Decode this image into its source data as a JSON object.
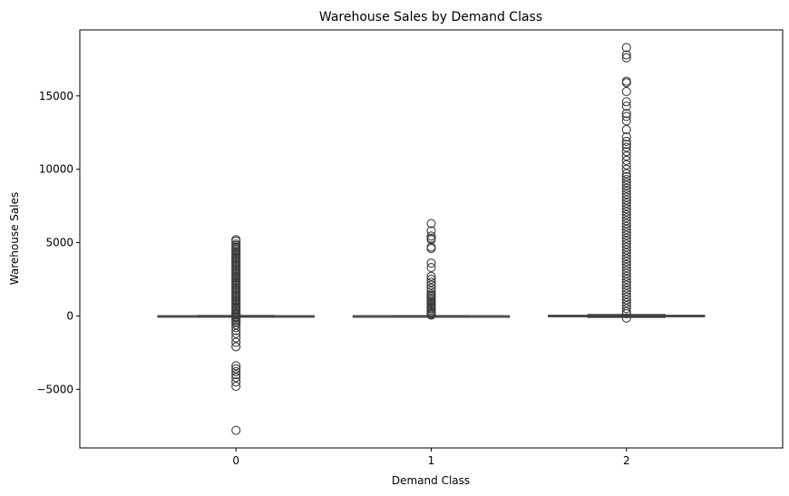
{
  "chart_data": {
    "type": "box",
    "title": "Warehouse Sales by Demand Class",
    "xlabel": "Demand Class",
    "ylabel": "Warehouse Sales",
    "categories": [
      "0",
      "1",
      "2"
    ],
    "ylim": [
      -9000,
      19500
    ],
    "yticks": [
      -5000,
      0,
      5000,
      10000,
      15000
    ],
    "ytick_labels": [
      "−5000",
      "0",
      "5000",
      "10000",
      "15000"
    ],
    "grid": false,
    "box_color": "#3d3d3d",
    "boxes": [
      {
        "category": "0",
        "q1": 0,
        "median": 2,
        "q3": 8,
        "whisker_low": -15,
        "whisker_high": 25,
        "outliers": [
          5200,
          5100,
          4900,
          4800,
          4700,
          4600,
          4500,
          4400,
          4300,
          4200,
          4100,
          4000,
          3900,
          3800,
          3700,
          3600,
          3500,
          3400,
          3300,
          3200,
          3100,
          3000,
          2900,
          2800,
          2700,
          2600,
          2500,
          2400,
          2300,
          2200,
          2100,
          2000,
          1900,
          1800,
          1700,
          1600,
          1500,
          1400,
          1300,
          1200,
          1100,
          1000,
          900,
          800,
          700,
          600,
          500,
          400,
          300,
          200,
          120,
          80,
          50,
          -40,
          -80,
          -150,
          -250,
          -350,
          -450,
          -600,
          -800,
          -1000,
          -1200,
          -1500,
          -1800,
          -2100,
          -3400,
          -3600,
          -3800,
          -4000,
          -4200,
          -4500,
          -4800,
          -7800
        ]
      },
      {
        "category": "1",
        "q1": 0,
        "median": 1,
        "q3": 4,
        "whisker_low": -5,
        "whisker_high": 15,
        "outliers": [
          6300,
          5800,
          5450,
          5300,
          5200,
          4700,
          4600,
          3600,
          3300,
          2700,
          2500,
          2300,
          2100,
          1900,
          1700,
          1500,
          1400,
          1300,
          1200,
          1100,
          1000,
          900,
          800,
          700,
          600,
          500,
          400,
          300,
          200,
          150,
          100,
          60
        ]
      },
      {
        "category": "2",
        "q1": -30,
        "median": 0,
        "q3": 40,
        "whisker_low": -100,
        "whisker_high": 100,
        "outliers": [
          18300,
          17800,
          17600,
          16000,
          15900,
          15300,
          14600,
          14300,
          13800,
          13600,
          13300,
          12700,
          12200,
          11900,
          11700,
          11500,
          11200,
          10900,
          10600,
          10300,
          10000,
          9700,
          9500,
          9300,
          9100,
          8900,
          8700,
          8500,
          8300,
          8100,
          7900,
          7700,
          7500,
          7300,
          7100,
          6900,
          6700,
          6500,
          6300,
          6100,
          5900,
          5700,
          5500,
          5300,
          5100,
          4900,
          4700,
          4500,
          4300,
          4100,
          3900,
          3700,
          3500,
          3300,
          3100,
          2900,
          2700,
          2500,
          2300,
          2100,
          1900,
          1700,
          1500,
          1300,
          1100,
          900,
          700,
          500,
          300,
          150,
          -150
        ]
      }
    ]
  }
}
